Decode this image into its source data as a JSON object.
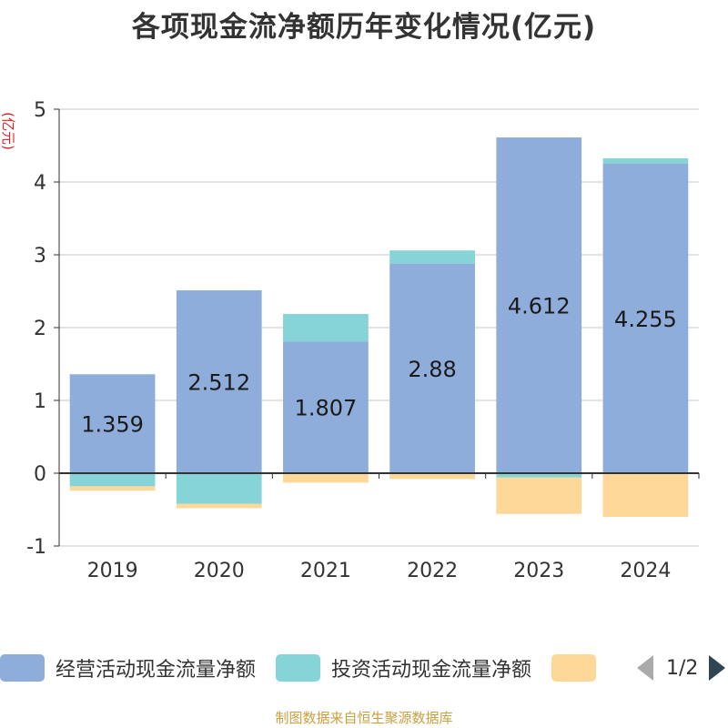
{
  "chart_data": {
    "type": "bar",
    "stacked": true,
    "title": "各项现金流净额历年变化情况(亿元)",
    "ylabel": "(亿元)",
    "xlabel": "",
    "ylim": [
      -1,
      5
    ],
    "yticks": [
      -1,
      0,
      1,
      2,
      3,
      4,
      5
    ],
    "categories": [
      "2019",
      "2020",
      "2021",
      "2022",
      "2023",
      "2024"
    ],
    "series": [
      {
        "name": "经营活动现金流量净额",
        "color": "#8eaddb",
        "values": [
          1.359,
          2.512,
          1.807,
          2.88,
          4.612,
          4.255
        ],
        "labels": [
          "1.359",
          "2.512",
          "1.807",
          "2.88",
          "4.612",
          "4.255"
        ]
      },
      {
        "name": "投资活动现金流量净额",
        "color": "#86d4d8",
        "values": [
          -0.18,
          -0.42,
          0.38,
          0.18,
          -0.06,
          0.07
        ]
      },
      {
        "name": "",
        "color": "#fed898",
        "values": [
          -0.06,
          -0.06,
          -0.13,
          -0.08,
          -0.5,
          -0.6
        ]
      }
    ],
    "legend_position": "bottom",
    "grid": true
  },
  "legend": {
    "items": [
      {
        "label": "经营活动现金流量净额",
        "color": "#8eaddb"
      },
      {
        "label": "投资活动现金流量净额",
        "color": "#86d4d8"
      },
      {
        "label": "",
        "color": "#fed898"
      }
    ],
    "pager_text": "1/2"
  },
  "source_note": "制图数据来自恒生聚源数据库"
}
